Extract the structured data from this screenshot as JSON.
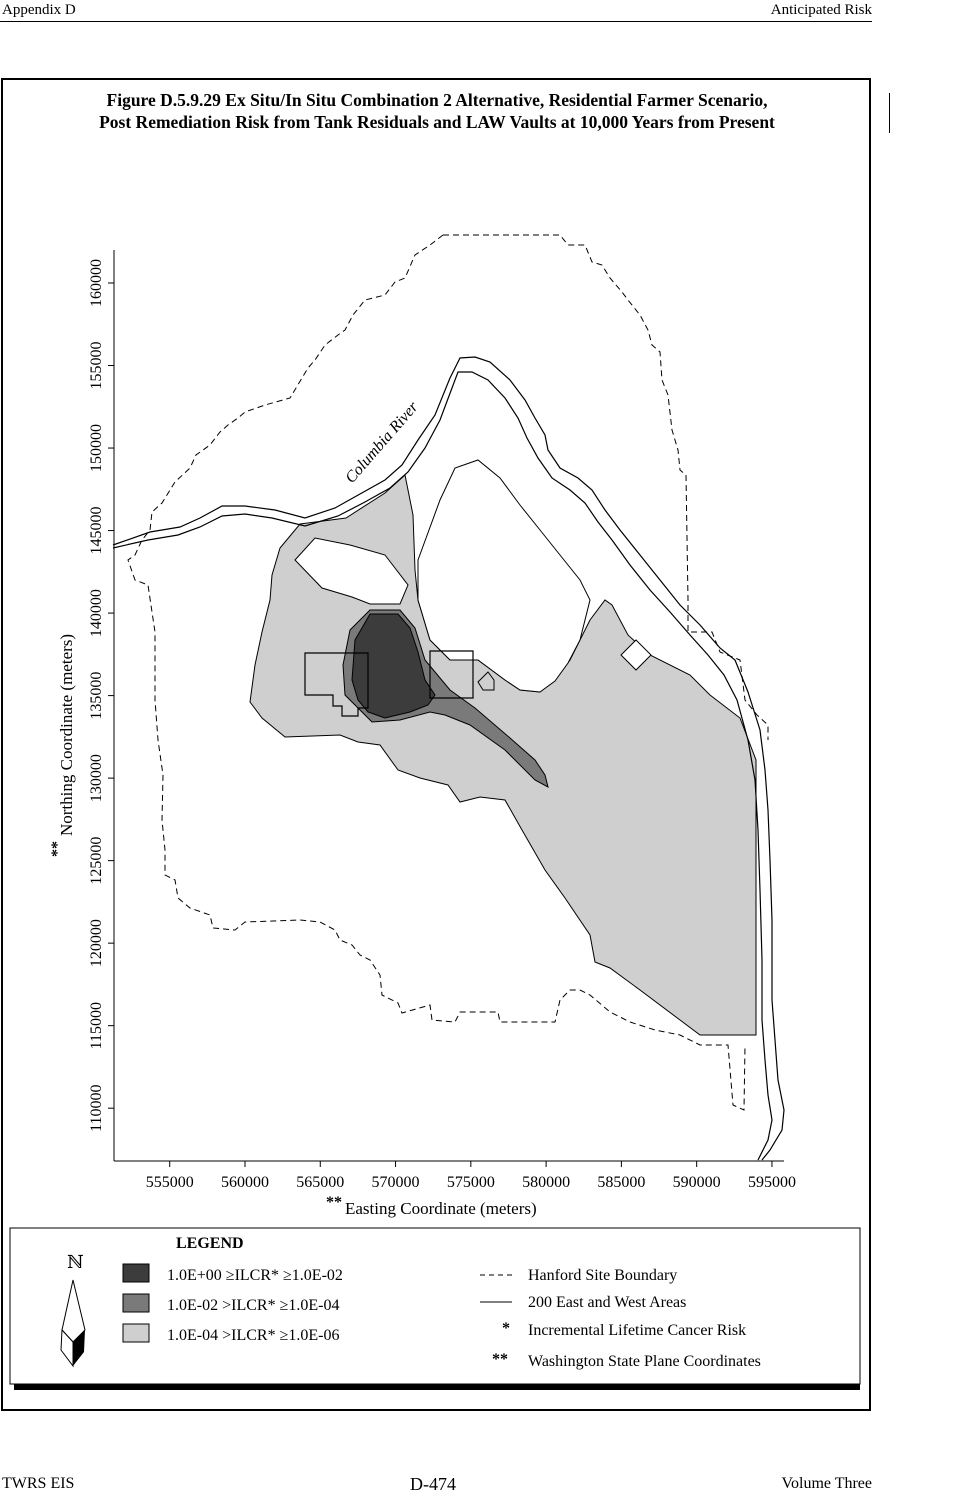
{
  "header": {
    "left": "Appendix D",
    "right": "Anticipated Risk"
  },
  "figure": {
    "title_line1": "Figure D.5.9.29  Ex Situ/In Situ Combination 2 Alternative, Residential Farmer Scenario,",
    "title_line2": "Post Remediation Risk from Tank Residuals and LAW Vaults at 10,000 Years from Present"
  },
  "map": {
    "x_axis_label": "Easting Coordinate (meters)",
    "y_axis_label": "Northing Coordinate (meters)",
    "axis_label_marker": "**",
    "x_ticks": [
      "555000",
      "560000",
      "565000",
      "570000",
      "575000",
      "580000",
      "585000",
      "590000",
      "595000"
    ],
    "y_ticks": [
      "110000",
      "115000",
      "120000",
      "125000",
      "130000",
      "135000",
      "140000",
      "145000",
      "150000",
      "155000",
      "160000"
    ],
    "x_range": [
      551300,
      595800
    ],
    "y_range": [
      106800,
      162000
    ],
    "river_label": "Columbia River",
    "colors": {
      "risk_high": "#3c3c3c",
      "risk_medium": "#7a7a7a",
      "risk_low": "#cfcfcf",
      "lines": "#000000"
    }
  },
  "legend": {
    "title": "LEGEND",
    "north_symbol": "ℕ",
    "items": [
      {
        "range": "1.0E+00  ≥ILCR*  ≥1.0E-02",
        "color": "#3c3c3c"
      },
      {
        "range": "1.0E-02  >ILCR*  ≥1.0E-04",
        "color": "#7a7a7a"
      },
      {
        "range": "1.0E-04  >ILCR*  ≥1.0E-06",
        "color": "#cfcfcf"
      }
    ],
    "notes": [
      {
        "symbol": "dashed-line",
        "text": "Hanford Site Boundary"
      },
      {
        "symbol": "solid-line",
        "text": "200 East and West Areas"
      },
      {
        "symbol": "*",
        "text": "Incremental Lifetime Cancer Risk"
      },
      {
        "symbol": "**",
        "text": "Washington State Plane Coordinates"
      }
    ]
  },
  "footer": {
    "left": "TWRS EIS",
    "center": "D-474",
    "right": "Volume Three"
  }
}
